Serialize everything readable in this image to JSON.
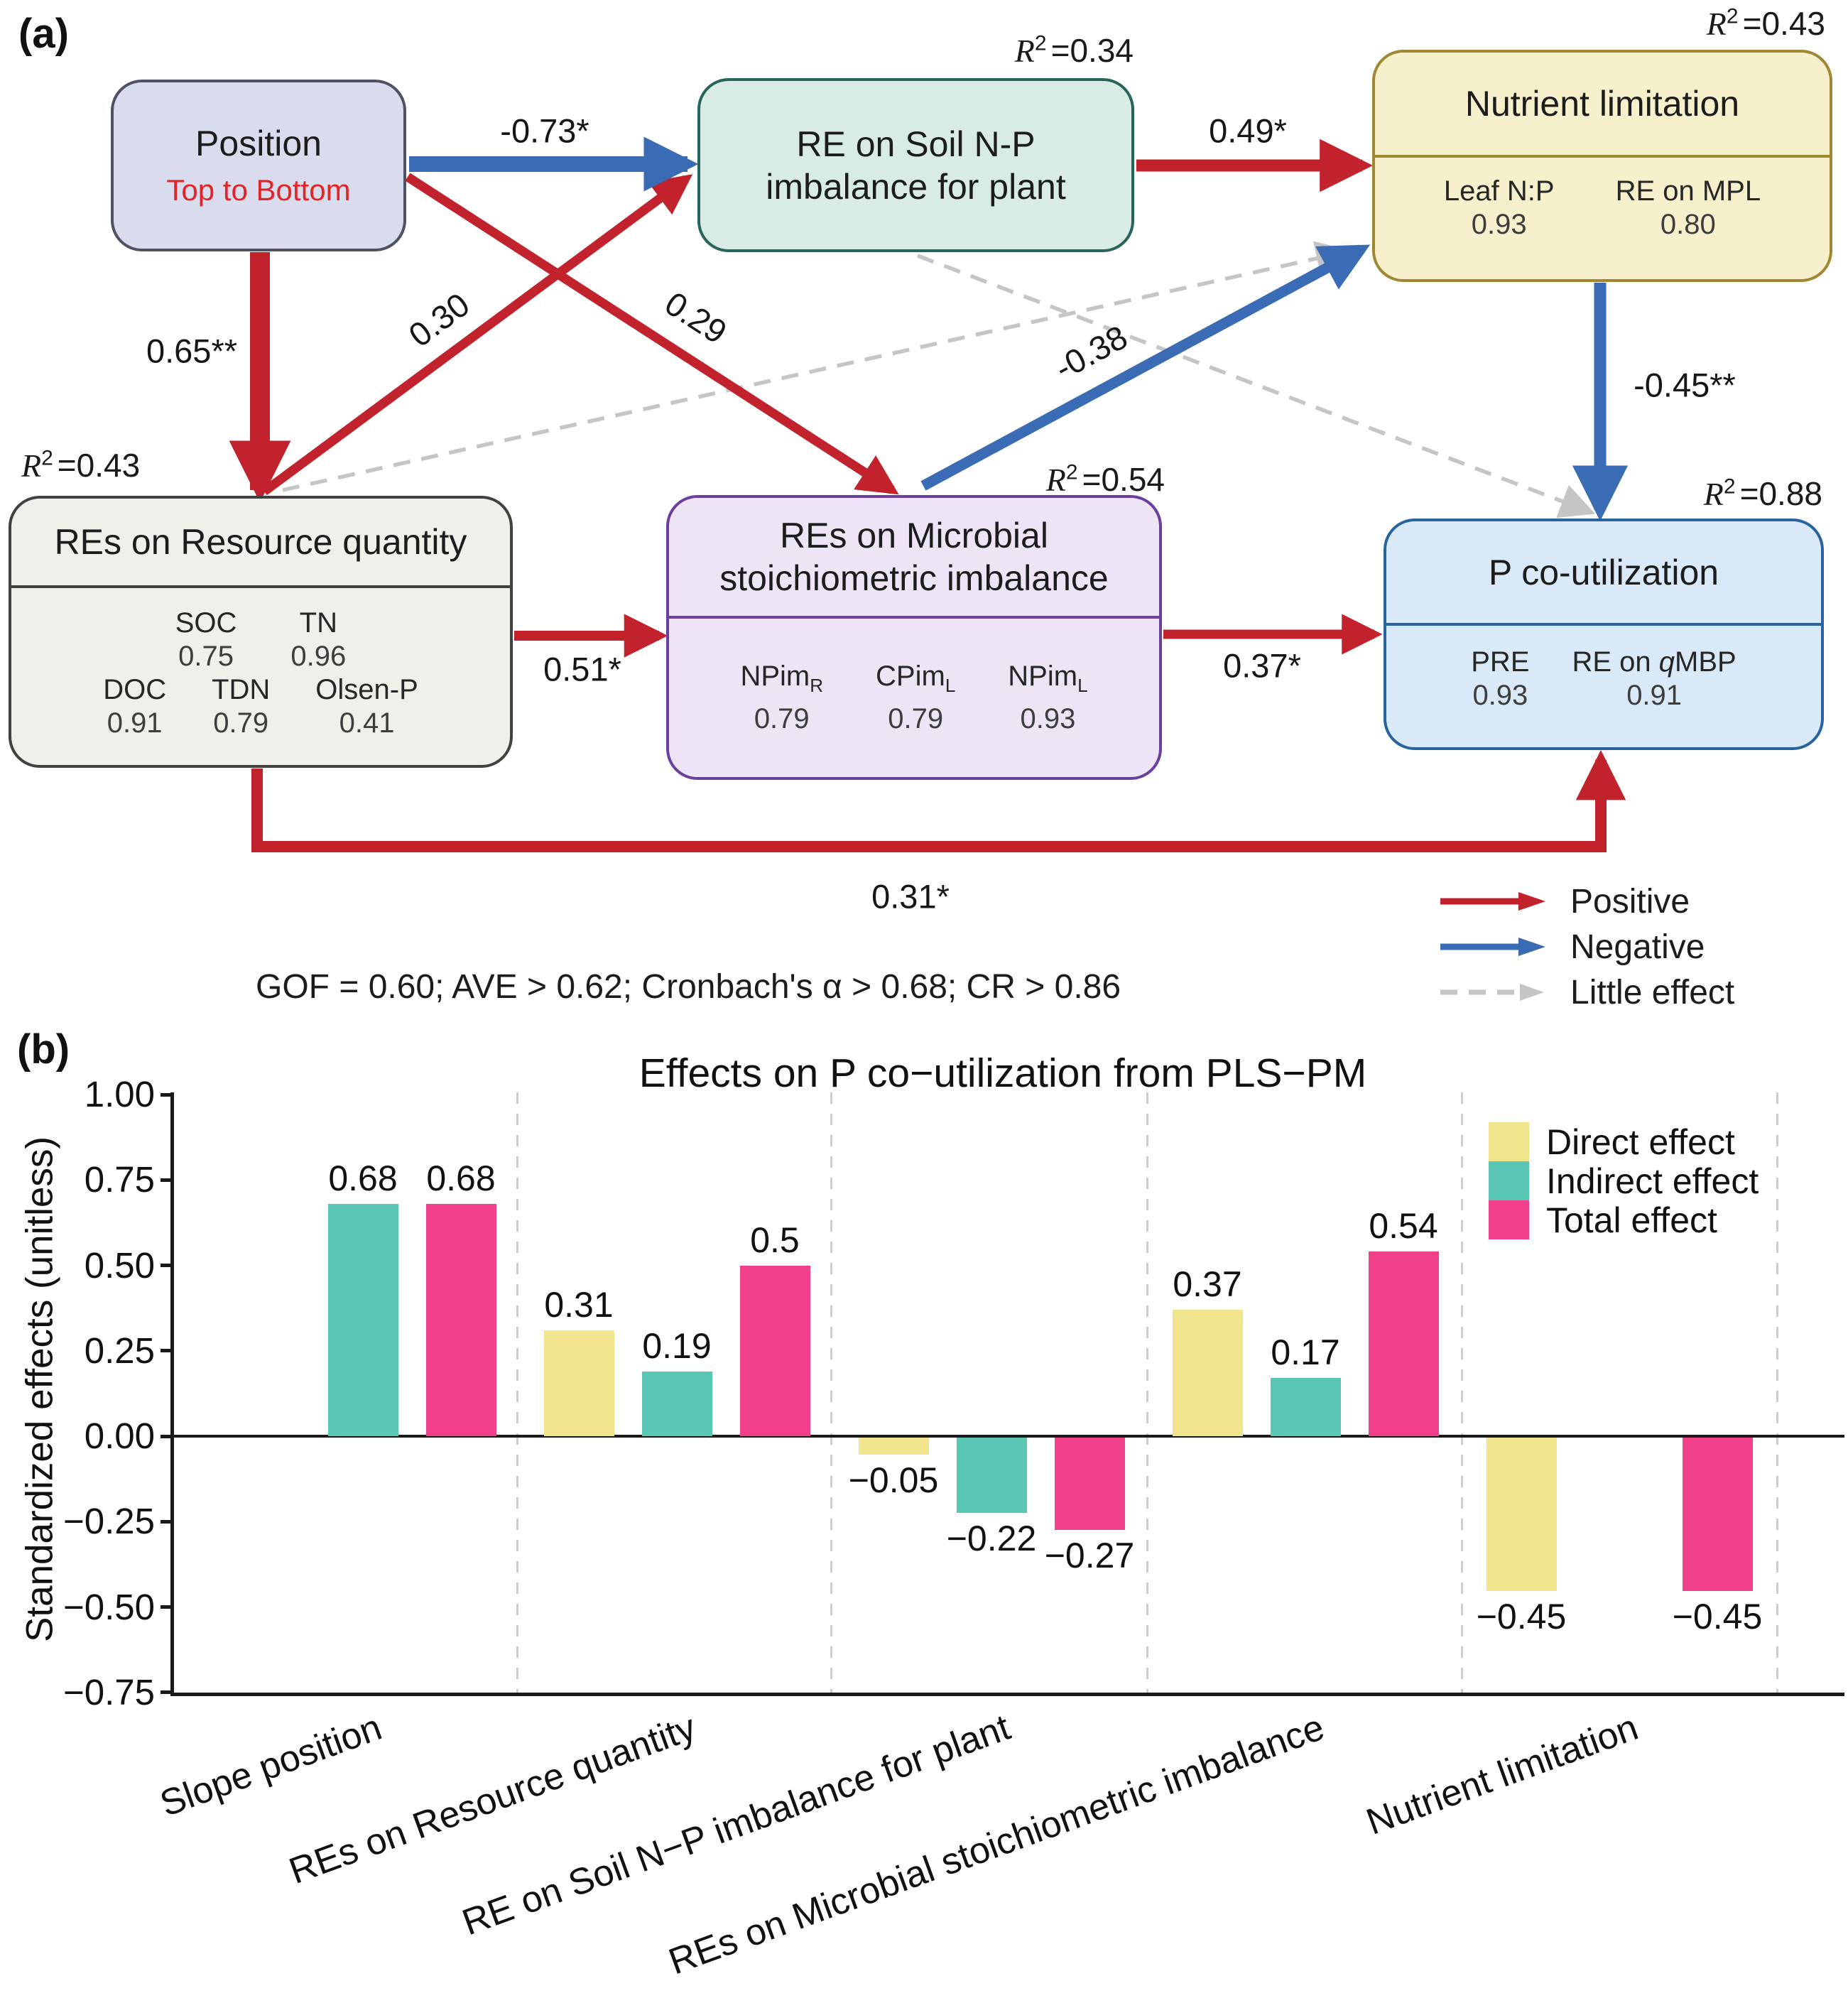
{
  "colors": {
    "positive_arrow": "#c2222b",
    "negative_arrow": "#3a6cb5",
    "little_effect_arrow": "#c5c5c5",
    "subtitle_red": "#e02428"
  },
  "panel_a": {
    "label": "(a)",
    "nodes": {
      "position": {
        "title": "Position",
        "subtitle": "Top to Bottom",
        "fill": "#d9dcec",
        "border": "#4e5264"
      },
      "soil": {
        "title_line1": "RE on Soil N-P",
        "title_line2": "imbalance for plant",
        "fill": "#d8ece5",
        "border": "#27655a",
        "r2": {
          "sym": "R",
          "sup": "2",
          "val": "=0.34"
        }
      },
      "nutrient": {
        "title": "Nutrient limitation",
        "fill": "#f6f0cd",
        "border": "#9f8733",
        "r2": {
          "sym": "R",
          "sup": "2",
          "val": "=0.43"
        },
        "indicators": [
          {
            "name": "Leaf N:P",
            "value": "0.93"
          },
          {
            "name": "RE on MPL",
            "value": "0.80"
          }
        ]
      },
      "resource": {
        "title": "REs on Resource quantity",
        "fill": "#eef0e9",
        "border": "#414141",
        "r2": {
          "sym": "R",
          "sup": "2",
          "val": "=0.43"
        },
        "row1": [
          {
            "name": "SOC",
            "value": "0.75"
          },
          {
            "name": "TN",
            "value": "0.96"
          }
        ],
        "row2": [
          {
            "name": "DOC",
            "value": "0.91"
          },
          {
            "name": "TDN",
            "value": "0.79"
          },
          {
            "name": "Olsen-P",
            "value": "0.41"
          }
        ]
      },
      "microbial": {
        "title_line1": "REs on Microbial",
        "title_line2": "stoichiometric imbalance",
        "fill": "#ede5f6",
        "border": "#6a3f9e",
        "r2": {
          "sym": "R",
          "sup": "2",
          "val": "=0.54"
        },
        "indicators": [
          {
            "base": "NPim",
            "sub": "R",
            "value": "0.79"
          },
          {
            "base": "CPim",
            "sub": "L",
            "value": "0.79"
          },
          {
            "base": "NPim",
            "sub": "L",
            "value": "0.93"
          }
        ]
      },
      "putilization": {
        "title": "P co-utilization",
        "fill": "#d9e9f7",
        "border": "#27639d",
        "r2": {
          "sym": "R",
          "sup": "2",
          "val": "=0.88"
        },
        "ind1": {
          "name": "PRE",
          "value": "0.93"
        },
        "ind2": {
          "pre": "RE on ",
          "italic": "q",
          "post": "MBP",
          "value": "0.91"
        }
      }
    },
    "paths": [
      {
        "from": "Position",
        "to": "RE on Soil N-P imbalance for plant",
        "label": "-0.73*",
        "type": "negative"
      },
      {
        "from": "Position",
        "to": "REs on Resource quantity",
        "label": "0.65**",
        "type": "positive"
      },
      {
        "from": "REs on Resource quantity",
        "to": "RE on Soil N-P imbalance for plant",
        "label": "0.30",
        "type": "positive"
      },
      {
        "from": "Position",
        "to": "REs on Microbial stoichiometric imbalance",
        "label": "0.29",
        "type": "positive"
      },
      {
        "from": "REs on Resource quantity",
        "to": "Nutrient limitation",
        "label": "",
        "type": "little-effect"
      },
      {
        "from": "RE on Soil N-P imbalance for plant",
        "to": "P co-utilization",
        "label": "",
        "type": "little-effect"
      },
      {
        "from": "REs on Microbial stoichiometric imbalance",
        "to": "Nutrient limitation",
        "label": "-0.38",
        "type": "negative"
      },
      {
        "from": "RE on Soil N-P imbalance for plant",
        "to": "Nutrient limitation",
        "label": "0.49*",
        "type": "positive"
      },
      {
        "from": "Nutrient limitation",
        "to": "P co-utilization",
        "label": "-0.45**",
        "type": "negative"
      },
      {
        "from": "REs on Resource quantity",
        "to": "REs on Microbial stoichiometric imbalance",
        "label": "0.51*",
        "type": "positive"
      },
      {
        "from": "REs on Microbial stoichiometric imbalance",
        "to": "P co-utilization",
        "label": "0.37*",
        "type": "positive"
      },
      {
        "from": "REs on Resource quantity",
        "to": "P co-utilization",
        "label": "0.31*",
        "type": "positive"
      }
    ],
    "legend": [
      {
        "label": "Positive",
        "type": "positive"
      },
      {
        "label": "Negative",
        "type": "negative"
      },
      {
        "label": "Little effect",
        "type": "little-effect"
      }
    ],
    "fit_note": "GOF = 0.60; AVE > 0.62; Cronbach's α > 0.68; CR > 0.86"
  },
  "panel_b": {
    "label": "(b)"
  },
  "chart_data": {
    "type": "bar",
    "title": "Effects on P co−utilization from PLS−PM",
    "xlabel": "",
    "ylabel": "Standardized effects (unitless)",
    "ylim": [
      -0.75,
      1.0
    ],
    "grid": "dashed vertical separators between categories",
    "legend_position": "top-right",
    "categories": [
      "Slope position",
      "REs on Resource quantity",
      "RE on Soil N−P imbalance for plant",
      "REs on Microbial stoichiometric imbalance",
      "Nutrient limitation"
    ],
    "yticks": [
      {
        "v": 1.0,
        "label": "1.00"
      },
      {
        "v": 0.75,
        "label": "0.75"
      },
      {
        "v": 0.5,
        "label": "0.50"
      },
      {
        "v": 0.25,
        "label": "0.25"
      },
      {
        "v": 0.0,
        "label": "0.00"
      },
      {
        "v": -0.25,
        "label": "−0.25"
      },
      {
        "v": -0.5,
        "label": "−0.50"
      },
      {
        "v": -0.75,
        "label": "−0.75"
      }
    ],
    "series": [
      {
        "name": "Direct effect",
        "color": "#f0e48d",
        "values": [
          null,
          0.31,
          -0.05,
          0.37,
          -0.45
        ],
        "labels": [
          "",
          "0.31",
          "−0.05",
          "0.37",
          "−0.45"
        ]
      },
      {
        "name": "Indirect effect",
        "color": "#59c7b4",
        "values": [
          0.68,
          0.19,
          -0.22,
          0.17,
          null
        ],
        "labels": [
          "0.68",
          "0.19",
          "−0.22",
          "0.17",
          ""
        ]
      },
      {
        "name": "Total effect",
        "color": "#f0408a",
        "values": [
          0.68,
          0.5,
          -0.27,
          0.54,
          -0.45
        ],
        "labels": [
          "0.68",
          "0.5",
          "−0.27",
          "0.54",
          "−0.45"
        ]
      }
    ]
  }
}
